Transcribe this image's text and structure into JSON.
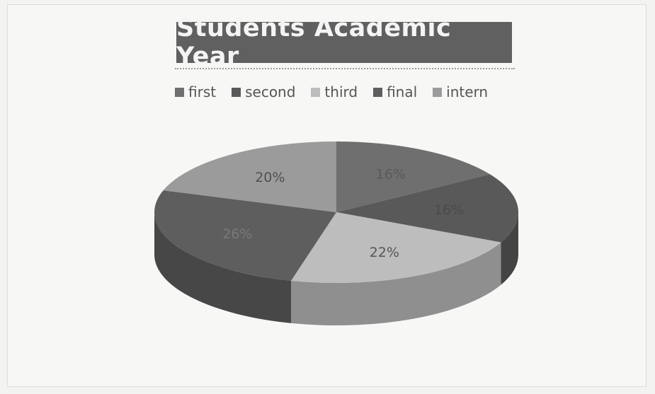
{
  "chart_data": {
    "type": "pie",
    "title": "Students Academic Year",
    "categories": [
      "first",
      "second",
      "third",
      "final",
      "intern"
    ],
    "values": [
      16,
      16,
      22,
      26,
      20
    ],
    "labels": [
      "16%",
      "16%",
      "22%",
      "26%",
      "20%"
    ],
    "legend_position": "top",
    "three_d": true,
    "colors": [
      "#6f6f6f",
      "#595959",
      "#bdbdbd",
      "#5e5e5e",
      "#9b9b9b"
    ],
    "side_colors": [
      "#565656",
      "#444444",
      "#8f8f8f",
      "#474747",
      "#767676"
    ],
    "label_colors": [
      "#5a5a5a",
      "#4a4a4a",
      "#555555",
      "#7a7a7a",
      "#505050"
    ]
  }
}
